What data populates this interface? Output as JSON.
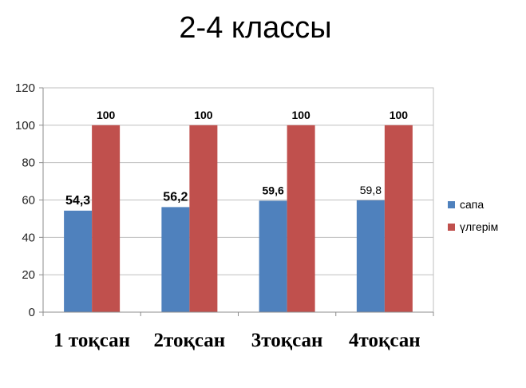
{
  "chart_data": {
    "type": "bar",
    "title": "2-4 классы",
    "categories": [
      "1 тоқсан",
      "2тоқсан",
      "3тоқсан",
      "4тоқсан"
    ],
    "series": [
      {
        "name": "сапа",
        "color": "#4f81bd",
        "values": [
          54.3,
          56.2,
          59.6,
          59.8
        ],
        "labels": [
          "54,3",
          "56,2",
          "59,6",
          "59,8"
        ]
      },
      {
        "name": "үлгерім",
        "color": "#c0504d",
        "values": [
          100,
          100,
          100,
          100
        ],
        "labels": [
          "100",
          "100",
          "100",
          "100"
        ]
      }
    ],
    "ylim": [
      0,
      120
    ],
    "yticks": [
      "0",
      "20",
      "40",
      "60",
      "80",
      "100",
      "120"
    ],
    "ytick_values": [
      0,
      20,
      40,
      60,
      80,
      100,
      120
    ],
    "grid": true,
    "legend": "right",
    "xlabel": "",
    "ylabel": ""
  }
}
